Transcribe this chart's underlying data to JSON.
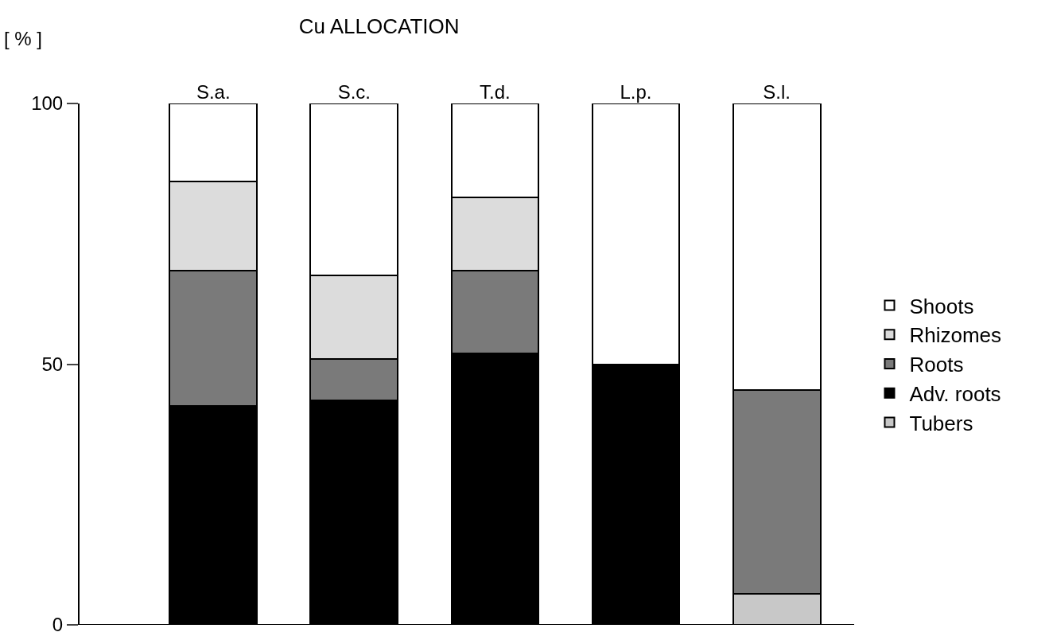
{
  "chart_data": {
    "type": "bar",
    "title": "Cu ALLOCATION",
    "ylabel": "[ % ]",
    "stacked": true,
    "categories": [
      "S.a.",
      "S.c.",
      "T.d.",
      "L.p.",
      "S.l."
    ],
    "series": [
      {
        "name": "Tubers",
        "color": "#c8c8c8",
        "values": [
          null,
          null,
          null,
          null,
          6
        ]
      },
      {
        "name": "Adv. roots",
        "color": "#000000",
        "values": [
          42,
          43,
          52,
          50,
          null
        ]
      },
      {
        "name": "Roots",
        "color": "#7a7a7a",
        "values": [
          26,
          8,
          16,
          null,
          39
        ]
      },
      {
        "name": "Rhizomes",
        "color": "#dcdcdc",
        "values": [
          17,
          16,
          14,
          null,
          null
        ]
      },
      {
        "name": "Shoots",
        "color": "#ffffff",
        "values": [
          15,
          33,
          18,
          50,
          55
        ]
      }
    ],
    "ylim": [
      0,
      100
    ],
    "yticks": [
      0,
      50,
      100
    ],
    "grid": false,
    "legend": "right"
  }
}
